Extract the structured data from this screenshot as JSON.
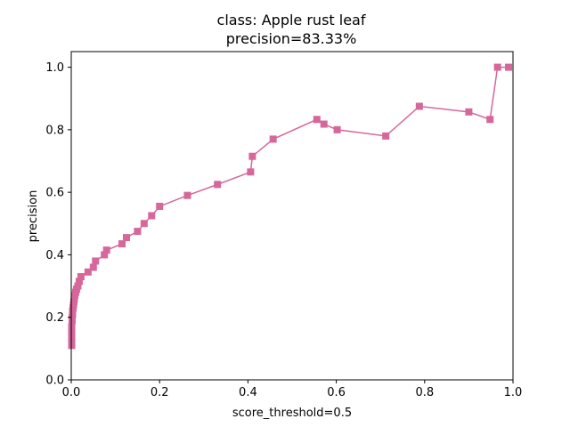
{
  "chart_data": {
    "type": "line",
    "title_line1": "class: Apple rust leaf",
    "title_line2": "precision=83.33%",
    "xlabel": "score_threshold=0.5",
    "ylabel": "precision",
    "xlim": [
      0.0,
      1.0
    ],
    "ylim": [
      0.0,
      1.05
    ],
    "x_ticks": [
      "0.0",
      "0.2",
      "0.4",
      "0.6",
      "0.8",
      "1.0"
    ],
    "y_ticks": [
      "0.0",
      "0.2",
      "0.4",
      "0.6",
      "0.8",
      "1.0"
    ],
    "grid": false,
    "marker": "square",
    "color": "#d5679a",
    "series": [
      {
        "x": [
          0.001,
          0.001,
          0.001,
          0.001,
          0.001,
          0.002,
          0.002,
          0.003,
          0.003,
          0.004,
          0.005,
          0.006,
          0.007,
          0.008,
          0.01,
          0.012,
          0.015,
          0.018,
          0.022,
          0.038,
          0.05,
          0.055,
          0.075,
          0.08,
          0.115,
          0.125,
          0.15,
          0.165,
          0.182,
          0.2,
          0.263,
          0.331,
          0.406,
          0.41,
          0.457,
          0.556,
          0.572,
          0.602,
          0.712,
          0.788,
          0.9,
          0.948,
          0.965,
          0.99
        ],
        "y": [
          0.11,
          0.12,
          0.13,
          0.15,
          0.17,
          0.19,
          0.2,
          0.21,
          0.22,
          0.23,
          0.24,
          0.25,
          0.26,
          0.27,
          0.28,
          0.29,
          0.3,
          0.315,
          0.33,
          0.345,
          0.36,
          0.38,
          0.4,
          0.415,
          0.435,
          0.455,
          0.475,
          0.5,
          0.525,
          0.555,
          0.59,
          0.625,
          0.665,
          0.715,
          0.77,
          0.833,
          0.818,
          0.8,
          0.78,
          0.875,
          0.857,
          0.833,
          1.0,
          1.0
        ]
      }
    ]
  }
}
